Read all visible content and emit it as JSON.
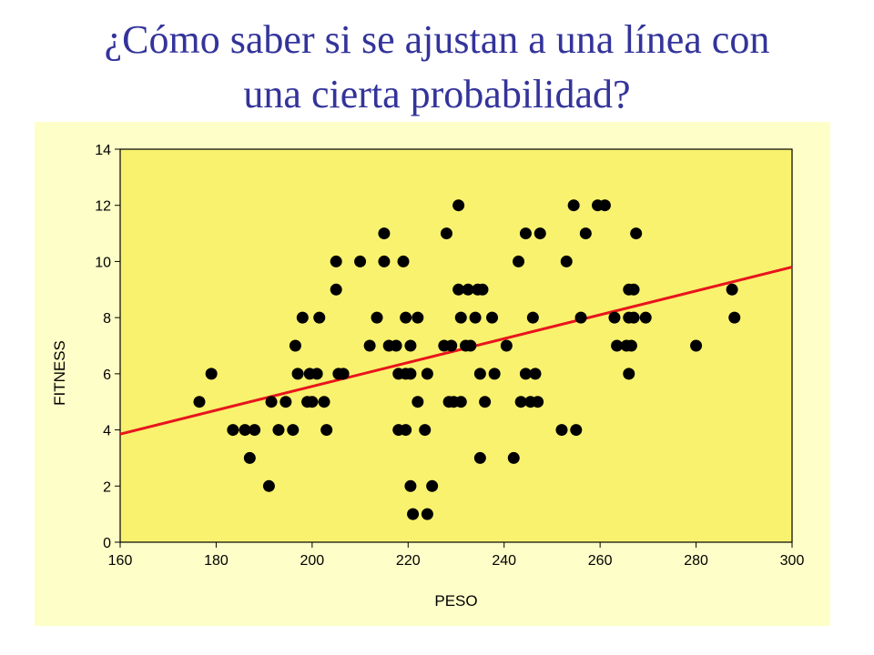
{
  "slide": {
    "title_line1": "¿Cómo saber si se ajustan a una línea con",
    "title_line2": "una cierta probabilidad?"
  },
  "colors": {
    "title": "#33349a",
    "panel_background": "#fefec8",
    "plot_background": "#f9f26e",
    "points": "#000000",
    "trend_line": "#e8141c"
  },
  "chart_data": {
    "type": "scatter",
    "title": "",
    "xlabel": "PESO",
    "ylabel": "FITNESS",
    "xlim": [
      160,
      300
    ],
    "ylim": [
      0,
      14
    ],
    "xticks": [
      160,
      180,
      200,
      220,
      240,
      260,
      280,
      300
    ],
    "yticks": [
      0,
      2,
      4,
      6,
      8,
      10,
      12,
      14
    ],
    "grid": false,
    "legend": "none",
    "trend_line": {
      "x": [
        160,
        300
      ],
      "y": [
        3.85,
        9.8
      ]
    },
    "points": [
      [
        176.5,
        5
      ],
      [
        179,
        6
      ],
      [
        183.5,
        4
      ],
      [
        186,
        4
      ],
      [
        187,
        3
      ],
      [
        188,
        4
      ],
      [
        191,
        2
      ],
      [
        191.5,
        5
      ],
      [
        193,
        4
      ],
      [
        194.5,
        5
      ],
      [
        196,
        4
      ],
      [
        196.5,
        7
      ],
      [
        197,
        6
      ],
      [
        198,
        8
      ],
      [
        199,
        5
      ],
      [
        199.5,
        6
      ],
      [
        200,
        5
      ],
      [
        201,
        6
      ],
      [
        201.5,
        8
      ],
      [
        202.5,
        5
      ],
      [
        203,
        4
      ],
      [
        205,
        9
      ],
      [
        205,
        10
      ],
      [
        205.5,
        6
      ],
      [
        206.5,
        6
      ],
      [
        210,
        10
      ],
      [
        212,
        7
      ],
      [
        213.5,
        8
      ],
      [
        215,
        11
      ],
      [
        215,
        10
      ],
      [
        216,
        7
      ],
      [
        217.5,
        7
      ],
      [
        218,
        6
      ],
      [
        218,
        4
      ],
      [
        219,
        10
      ],
      [
        219.5,
        8
      ],
      [
        219.5,
        6
      ],
      [
        219.5,
        4
      ],
      [
        220.5,
        7
      ],
      [
        220.5,
        6
      ],
      [
        220.5,
        2
      ],
      [
        221,
        1
      ],
      [
        222,
        8
      ],
      [
        222,
        5
      ],
      [
        223.5,
        4
      ],
      [
        224,
        6
      ],
      [
        224,
        1
      ],
      [
        225,
        2
      ],
      [
        227.5,
        7
      ],
      [
        228,
        11
      ],
      [
        228.5,
        5
      ],
      [
        229,
        7
      ],
      [
        229.5,
        5
      ],
      [
        230.5,
        9
      ],
      [
        230.5,
        12
      ],
      [
        231,
        5
      ],
      [
        231,
        8
      ],
      [
        232,
        7
      ],
      [
        232.5,
        9
      ],
      [
        233,
        7
      ],
      [
        234,
        8
      ],
      [
        234.5,
        9
      ],
      [
        235,
        6
      ],
      [
        235,
        3
      ],
      [
        235.5,
        9
      ],
      [
        236,
        5
      ],
      [
        237.5,
        8
      ],
      [
        238,
        6
      ],
      [
        240.5,
        7
      ],
      [
        242,
        3
      ],
      [
        243,
        10
      ],
      [
        243.5,
        5
      ],
      [
        244.5,
        6
      ],
      [
        244.5,
        11
      ],
      [
        245.5,
        5
      ],
      [
        246,
        8
      ],
      [
        246.5,
        6
      ],
      [
        247,
        5
      ],
      [
        247.5,
        11
      ],
      [
        252,
        4
      ],
      [
        253,
        10
      ],
      [
        254.5,
        12
      ],
      [
        255,
        4
      ],
      [
        256,
        8
      ],
      [
        257,
        11
      ],
      [
        259.5,
        12
      ],
      [
        261,
        12
      ],
      [
        263,
        8
      ],
      [
        263.5,
        7
      ],
      [
        265.5,
        7
      ],
      [
        266,
        9
      ],
      [
        266,
        8
      ],
      [
        266,
        6
      ],
      [
        266.5,
        7
      ],
      [
        267,
        9
      ],
      [
        267,
        8
      ],
      [
        267.5,
        11
      ],
      [
        269.5,
        8
      ],
      [
        280,
        7
      ],
      [
        287.5,
        9
      ],
      [
        288,
        8
      ]
    ]
  }
}
